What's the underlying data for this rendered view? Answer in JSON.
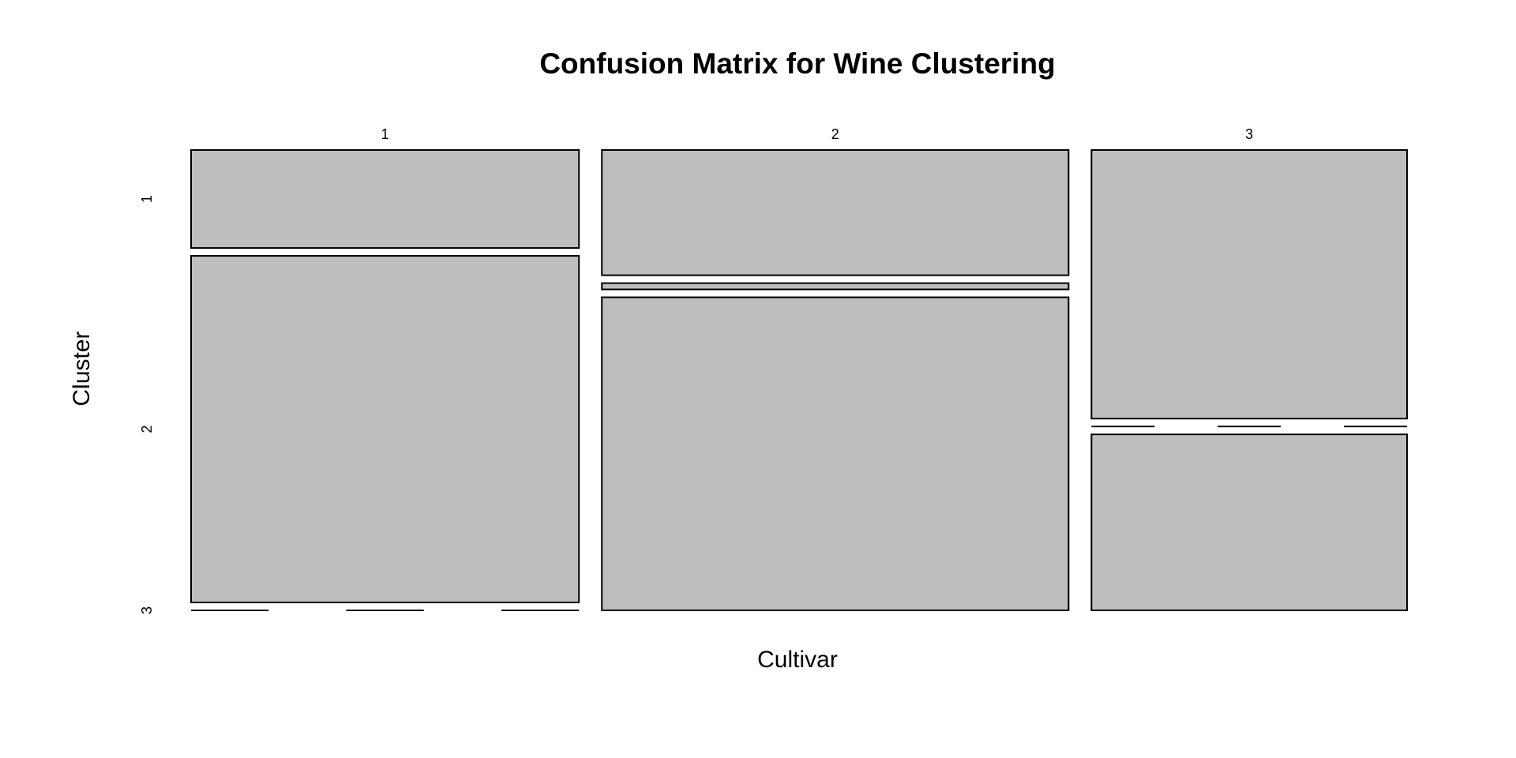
{
  "chart_data": {
    "type": "mosaic",
    "title": "Confusion Matrix for Wine Clustering",
    "xlabel": "Cultivar",
    "ylabel": "Cluster",
    "x_categories": [
      "1",
      "2",
      "3"
    ],
    "y_categories": [
      "1",
      "2",
      "3"
    ],
    "counts": [
      [
        13,
        46,
        0
      ],
      [
        20,
        1,
        50
      ],
      [
        29,
        0,
        19
      ]
    ],
    "colors": {
      "tile_fill": "#bebebe",
      "tile_stroke": "#000000",
      "background": "#ffffff"
    }
  }
}
